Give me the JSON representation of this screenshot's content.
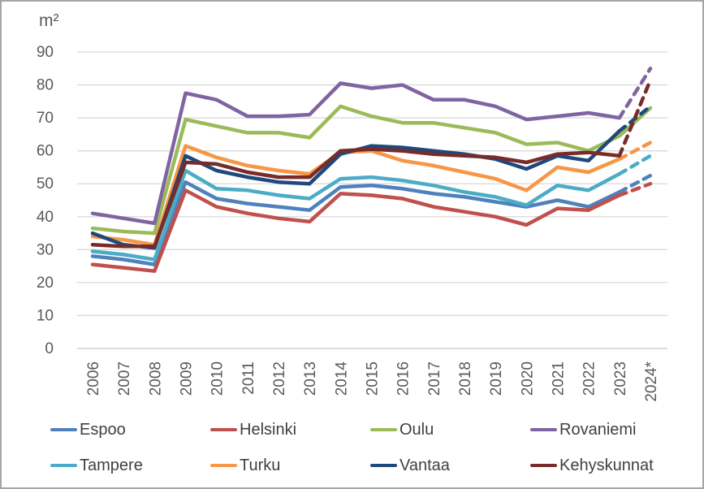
{
  "chart_data": {
    "type": "line",
    "unit_label": "m²",
    "categories": [
      "2006",
      "2007",
      "2008",
      "2009",
      "2010",
      "2011",
      "2012",
      "2013",
      "2014",
      "2015",
      "2016",
      "2017",
      "2018",
      "2019",
      "2020",
      "2021",
      "2022",
      "2023",
      "2024*"
    ],
    "ylim": [
      0,
      90
    ],
    "y_tick_labels": [
      "0",
      "10",
      "20",
      "30",
      "40",
      "50",
      "60",
      "70",
      "80",
      "90"
    ],
    "grid": true,
    "legend_position": "bottom",
    "note": "last segment (2023 to 2024*) drawn dashed as projection for all series except Oulu",
    "series": [
      {
        "name": "Espoo",
        "color": "#4F81BD",
        "dashed_last": true,
        "values": [
          28,
          27,
          25.5,
          50.5,
          45.5,
          44,
          43,
          42,
          49,
          49.5,
          48.5,
          47,
          46,
          44.5,
          43,
          45,
          43,
          47.5,
          52.5
        ]
      },
      {
        "name": "Helsinki",
        "color": "#C0504D",
        "dashed_last": true,
        "values": [
          25.5,
          24.5,
          23.5,
          48,
          43,
          41,
          39.5,
          38.5,
          47,
          46.5,
          45.5,
          43,
          41.5,
          40,
          37.5,
          42.5,
          42,
          46.5,
          50
        ]
      },
      {
        "name": "Oulu",
        "color": "#9BBB59",
        "dashed_last": false,
        "values": [
          36.5,
          35.5,
          35,
          69.5,
          67.5,
          65.5,
          65.5,
          64,
          73.5,
          70.5,
          68.5,
          68.5,
          67,
          65.5,
          62,
          62.5,
          60,
          64.5,
          73
        ]
      },
      {
        "name": "Rovaniemi",
        "color": "#8064A2",
        "dashed_last": true,
        "values": [
          41,
          39.5,
          38,
          77.5,
          75.5,
          70.5,
          70.5,
          71,
          80.5,
          79,
          80,
          75.5,
          75.5,
          73.5,
          69.5,
          70.5,
          71.5,
          70,
          85
        ]
      },
      {
        "name": "Tampere",
        "color": "#4BACC6",
        "dashed_last": true,
        "values": [
          29.5,
          28.5,
          27,
          54,
          48.5,
          48,
          46.5,
          45.5,
          51.5,
          52,
          51,
          49.5,
          47.5,
          46,
          43.5,
          49.5,
          48,
          53,
          58.5
        ]
      },
      {
        "name": "Turku",
        "color": "#F79646",
        "dashed_last": true,
        "values": [
          34,
          33,
          31.5,
          61.5,
          58,
          55.5,
          54,
          53,
          59.5,
          60,
          57,
          55.5,
          53.5,
          51.5,
          48,
          55,
          53.5,
          57.5,
          62.5
        ]
      },
      {
        "name": "Vantaa",
        "color": "#1F497D",
        "dashed_last": true,
        "values": [
          35,
          31.5,
          30.5,
          58.5,
          54,
          52,
          50.5,
          50,
          59,
          61.5,
          61,
          60,
          59,
          57.5,
          54.5,
          58.5,
          57,
          66,
          73.5
        ]
      },
      {
        "name": "Kehyskunnat",
        "color": "#772C2A",
        "dashed_last": true,
        "values": [
          31.5,
          31,
          31,
          56.5,
          56,
          53.5,
          52,
          52,
          60,
          60.5,
          60,
          59,
          58.5,
          58,
          56.5,
          59,
          59.5,
          58.5,
          81.5
        ]
      }
    ]
  }
}
